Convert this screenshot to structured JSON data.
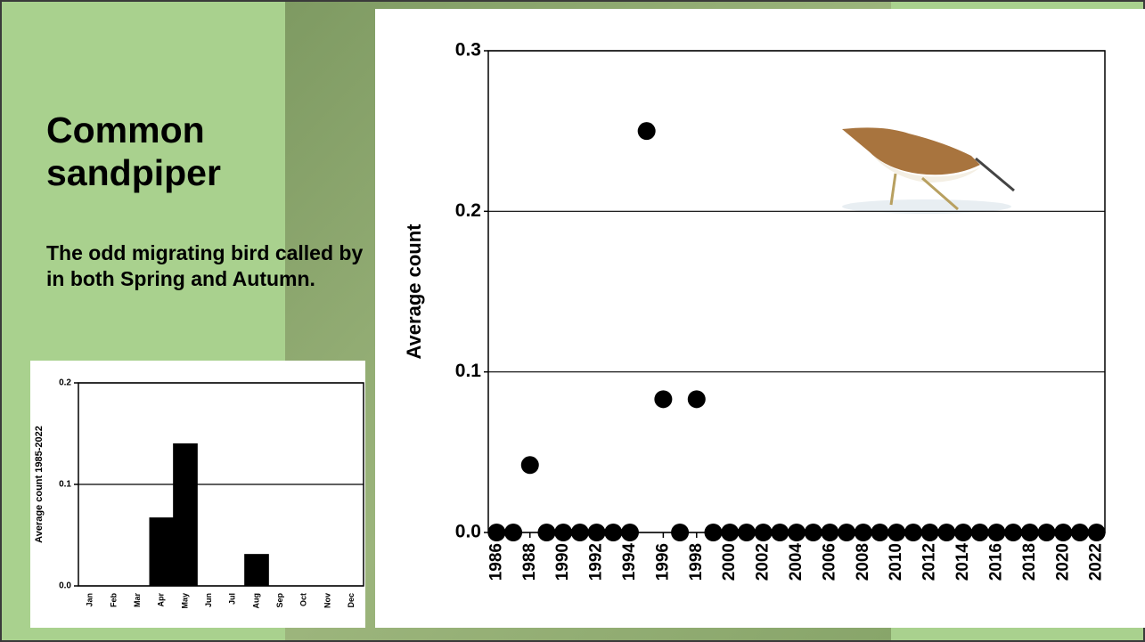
{
  "slide": {
    "title": "Common sandpiper",
    "text": "The odd migrating bird called by in both Spring and Autumn."
  },
  "chart_data": [
    {
      "type": "scatter",
      "y_label": "Average count",
      "color": "#000000",
      "grid": true,
      "x": [
        1986,
        1987,
        1988,
        1989,
        1990,
        1991,
        1992,
        1993,
        1994,
        1995,
        1996,
        1997,
        1998,
        1999,
        2000,
        2001,
        2002,
        2003,
        2004,
        2005,
        2006,
        2007,
        2008,
        2009,
        2010,
        2011,
        2012,
        2013,
        2014,
        2015,
        2016,
        2017,
        2018,
        2019,
        2020,
        2021,
        2022
      ],
      "values": [
        0,
        0,
        0.042,
        0,
        0,
        0,
        0,
        0,
        0,
        0.25,
        0.083,
        0,
        0.083,
        0,
        0,
        0,
        0,
        0,
        0,
        0,
        0,
        0,
        0,
        0,
        0,
        0,
        0,
        0,
        0,
        0,
        0,
        0,
        0,
        0,
        0,
        0,
        0
      ],
      "xlim": [
        1985.5,
        2022.5
      ],
      "xticks": [
        1986,
        1988,
        1990,
        1992,
        1994,
        1996,
        1998,
        2000,
        2002,
        2004,
        2006,
        2008,
        2010,
        2012,
        2014,
        2016,
        2018,
        2020,
        2022
      ],
      "ylim": [
        0,
        0.3
      ],
      "yticks": [
        {
          "value": 0,
          "label": "0.0"
        },
        0.1,
        0.2,
        0.3
      ]
    },
    {
      "type": "bar",
      "y_label": "Average count 1985-2022",
      "color": "#000000",
      "grid": true,
      "categories": [
        "Jan",
        "Feb",
        "Mar",
        "Apr",
        "May",
        "Jun",
        "Jul",
        "Aug",
        "Sep",
        "Oct",
        "Nov",
        "Dec"
      ],
      "values": [
        0,
        0,
        0,
        0.067,
        0.14,
        0,
        0,
        0.031,
        0,
        0,
        0,
        0
      ],
      "ylim": [
        0,
        0.2
      ],
      "yticks": [
        {
          "value": 0,
          "label": "0.0"
        },
        0.1,
        0.2
      ]
    }
  ]
}
